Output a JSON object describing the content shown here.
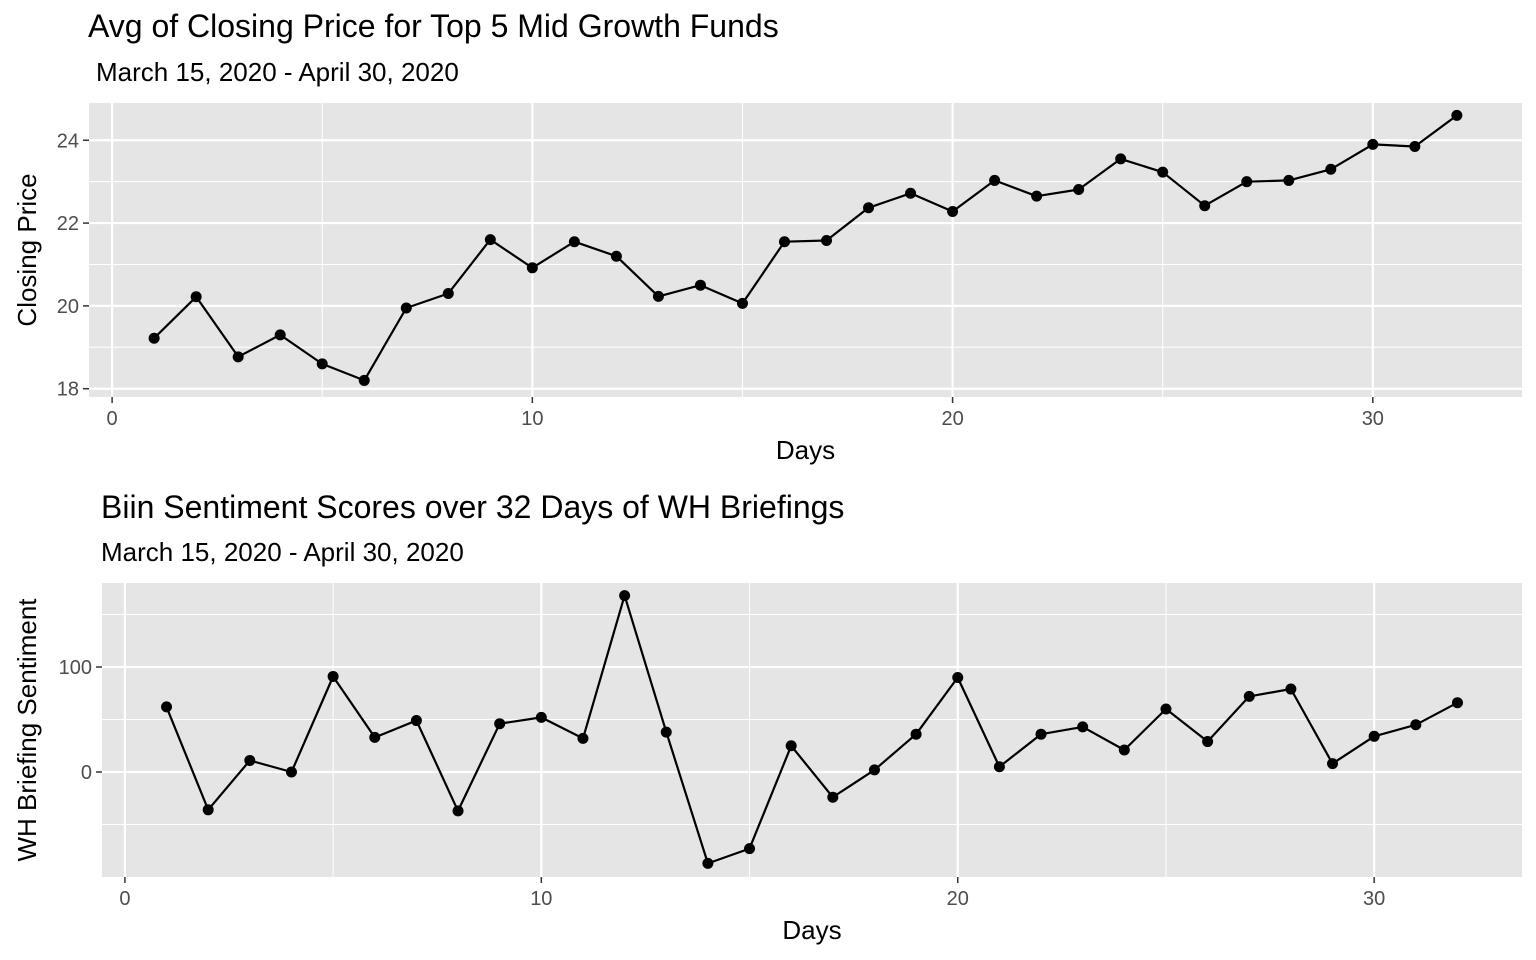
{
  "chart_data": [
    {
      "type": "line",
      "title": "Avg of Closing Price for Top 5 Mid Growth Funds",
      "subtitle": "March 15, 2020 - April 30, 2020",
      "xlabel": "Days",
      "ylabel": "Closing Price",
      "xlim": [
        -0.55,
        33.55
      ],
      "ylim": [
        17.8,
        24.9
      ],
      "xticks": [
        0,
        10,
        20,
        30
      ],
      "yticks": [
        18,
        20,
        22,
        24
      ],
      "grid": true,
      "x": [
        1,
        2,
        3,
        4,
        5,
        6,
        7,
        8,
        9,
        10,
        11,
        12,
        13,
        14,
        15,
        16,
        17,
        18,
        19,
        20,
        21,
        22,
        23,
        24,
        25,
        26,
        27,
        28,
        29,
        30,
        31,
        32
      ],
      "y": [
        19.22,
        20.22,
        18.77,
        19.3,
        18.6,
        18.2,
        19.95,
        20.3,
        21.6,
        20.92,
        21.55,
        21.2,
        20.23,
        20.5,
        20.06,
        21.55,
        21.58,
        22.37,
        22.72,
        22.28,
        23.03,
        22.65,
        22.81,
        23.55,
        23.23,
        22.42,
        23.0,
        23.03,
        23.3,
        23.9,
        23.85,
        24.6
      ],
      "colors": {
        "panel": "#e5e5e5",
        "grid_major": "#ffffff",
        "line": "#000000",
        "tick_text": "#4d4d4d"
      }
    },
    {
      "type": "line",
      "title": "Biin Sentiment Scores over 32 Days of WH Briefings",
      "subtitle": "March 15, 2020 - April 30, 2020",
      "xlabel": "Days",
      "ylabel": "WH Briefing Sentiment",
      "xlim": [
        -0.55,
        33.55
      ],
      "ylim": [
        -100,
        180
      ],
      "xticks": [
        0,
        10,
        20,
        30
      ],
      "yticks": [
        0,
        100
      ],
      "grid": true,
      "x": [
        1,
        2,
        3,
        4,
        5,
        6,
        7,
        8,
        9,
        10,
        11,
        12,
        13,
        14,
        15,
        16,
        17,
        18,
        19,
        20,
        21,
        22,
        23,
        24,
        25,
        26,
        27,
        28,
        29,
        30,
        31,
        32
      ],
      "y": [
        62,
        -36,
        11,
        0,
        91,
        33,
        49,
        -37,
        46,
        52,
        32,
        168,
        38,
        -87,
        -73,
        25,
        -24,
        2,
        36,
        90,
        5,
        36,
        43,
        21,
        60,
        29,
        72,
        79,
        8,
        34,
        45,
        66
      ],
      "colors": {
        "panel": "#e5e5e5",
        "grid_major": "#ffffff",
        "line": "#000000",
        "tick_text": "#4d4d4d"
      }
    }
  ]
}
